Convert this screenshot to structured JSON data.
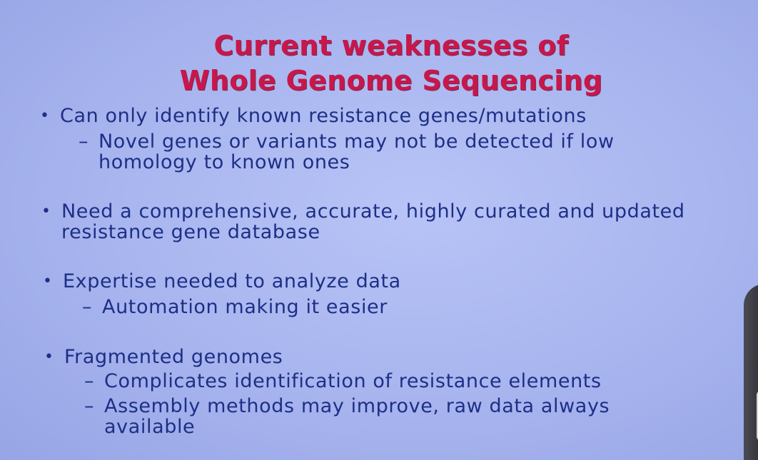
{
  "slide": {
    "title_line1": "Current weaknesses of",
    "title_line2": "Whole Genome Sequencing",
    "bullets": [
      {
        "text": "Can only identify known resistance genes/mutations",
        "subs": [
          {
            "line1": "Novel genes or variants may not be detected if low",
            "line2": "homology to known ones"
          }
        ]
      },
      {
        "line1": "Need a comprehensive, accurate, highly curated and updated",
        "line2": "resistance gene database"
      },
      {
        "text": "Expertise needed to analyze data",
        "subs": [
          {
            "line1": "Automation making it easier"
          }
        ]
      },
      {
        "text": "Fragmented genomes",
        "subs": [
          {
            "line1": "Complicates identification of resistance elements"
          },
          {
            "line1": "Assembly methods may improve, raw data always",
            "line2": "available"
          }
        ]
      }
    ],
    "bullet_glyph": "•",
    "dash_glyph": "–"
  }
}
